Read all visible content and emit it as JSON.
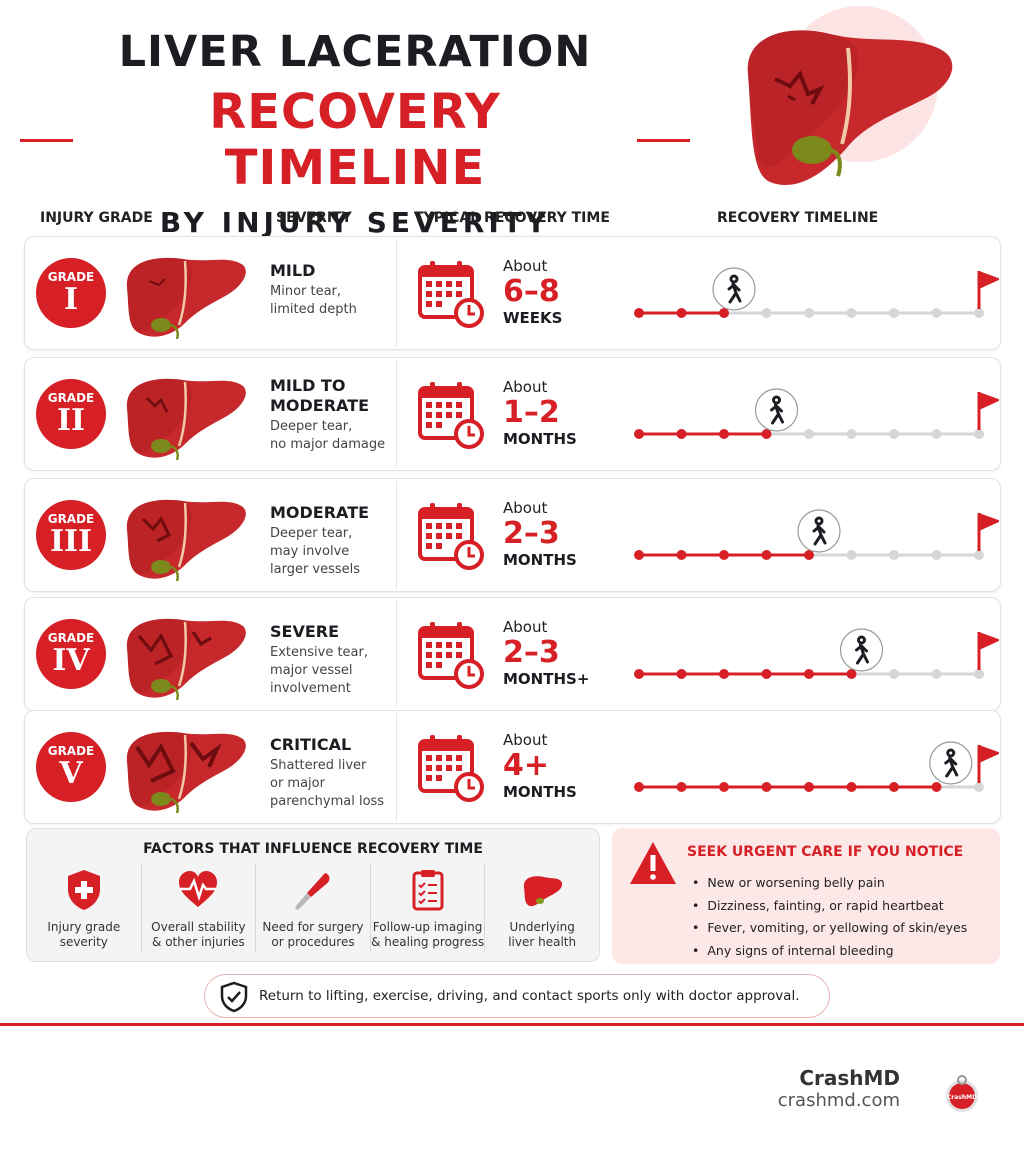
{
  "header": {
    "title_line1": "LIVER LACERATION",
    "title_line2": "RECOVERY TIMELINE",
    "title_line3": "BY INJURY SEVERITY"
  },
  "columns": {
    "grade": "INJURY GRADE",
    "severity": "SEVERITY",
    "recovery_time": "TYPICAL RECOVERY TIME",
    "timeline": "RECOVERY TIMELINE"
  },
  "grades": [
    {
      "label": "GRADE",
      "numeral": "I",
      "severity": "MILD",
      "desc1": "Minor tear,",
      "desc2": "limited depth",
      "desc3": "",
      "about": "About",
      "value": "6–8",
      "unit": "WEEKS",
      "progress_dots": 3,
      "total_dots": 9
    },
    {
      "label": "GRADE",
      "numeral": "II",
      "severity": "MILD TO MODERATE",
      "desc1": "Deeper tear,",
      "desc2": "no major damage",
      "desc3": "",
      "about": "About",
      "value": "1–2",
      "unit": "MONTHS",
      "progress_dots": 4,
      "total_dots": 9
    },
    {
      "label": "GRADE",
      "numeral": "III",
      "severity": "MODERATE",
      "desc1": "Deeper tear,",
      "desc2": "may involve",
      "desc3": "larger vessels",
      "about": "About",
      "value": "2–3",
      "unit": "MONTHS",
      "progress_dots": 5,
      "total_dots": 9
    },
    {
      "label": "GRADE",
      "numeral": "IV",
      "severity": "SEVERE",
      "desc1": "Extensive tear,",
      "desc2": "major vessel",
      "desc3": "involvement",
      "about": "About",
      "value": "2–3",
      "unit": "MONTHS+",
      "progress_dots": 6,
      "total_dots": 9
    },
    {
      "label": "GRADE",
      "numeral": "V",
      "severity": "CRITICAL",
      "desc1": "Shattered liver",
      "desc2": "or major",
      "desc3": "parenchymal loss",
      "about": "About",
      "value": "4+",
      "unit": "MONTHS",
      "progress_dots": 8,
      "total_dots": 9
    }
  ],
  "factors": {
    "title": "FACTORS THAT INFLUENCE RECOVERY TIME",
    "items": [
      {
        "icon": "shield-cross-icon",
        "line1": "Injury grade",
        "line2": "severity"
      },
      {
        "icon": "heart-pulse-icon",
        "line1": "Overall stability",
        "line2": "& other injuries"
      },
      {
        "icon": "scalpel-icon",
        "line1": "Need for surgery",
        "line2": "or procedures"
      },
      {
        "icon": "clipboard-icon",
        "line1": "Follow-up imaging",
        "line2": "& healing progress"
      },
      {
        "icon": "liver-icon",
        "line1": "Underlying",
        "line2": "liver health"
      }
    ]
  },
  "urgent": {
    "title": "SEEK URGENT CARE IF YOU NOTICE",
    "items": [
      "New or worsening belly pain",
      "Dizziness, fainting, or rapid heartbeat",
      "Fever, vomiting, or yellowing of skin/eyes",
      "Any signs of internal bleeding"
    ]
  },
  "note": "Return to lifting, exercise, driving, and contact sports only with doctor approval.",
  "brand": {
    "name": "CrashMD",
    "url": "crashmd.com",
    "logo_text": "CrashMD"
  },
  "colors": {
    "accent": "#d71f26",
    "text": "#1b1d22",
    "inactive": "#d6d6d6"
  }
}
